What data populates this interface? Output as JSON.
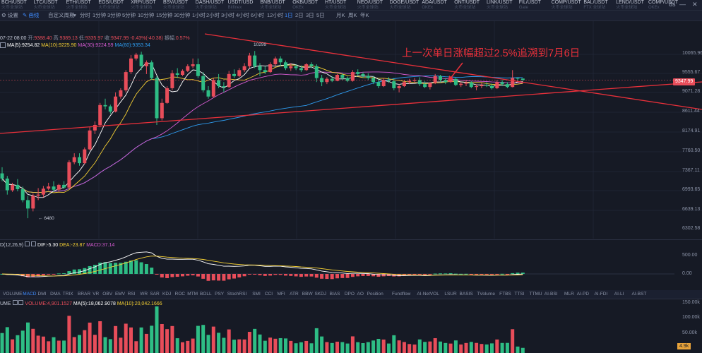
{
  "ticker": [
    {
      "name": "BCH/USDT",
      "sub": "火币全球站"
    },
    {
      "name": "LTC/USDT",
      "sub": "火币全球站"
    },
    {
      "name": "ETH/USDT",
      "sub": "火币全球站"
    },
    {
      "name": "EOS/USDT",
      "sub": "火币全球站"
    },
    {
      "name": "XRP/USDT",
      "sub": "火币全球站"
    },
    {
      "name": "BSV/USDT",
      "sub": "火币全球站"
    },
    {
      "name": "DASH/USDT",
      "sub": "火币全球站"
    },
    {
      "name": "USDT/USD",
      "sub": "Bitfinex"
    },
    {
      "name": "BNB/USDT",
      "sub": "火币全球站"
    },
    {
      "name": "OKB/USDT",
      "sub": "OKEx"
    },
    {
      "name": "HT/USDT",
      "sub": "火币全球站"
    },
    {
      "name": "NEO/USDT",
      "sub": "火币全球站"
    },
    {
      "name": "DOGE/USDT",
      "sub": "火币全球站"
    },
    {
      "name": "ADA/USDT",
      "sub": "OKEx"
    },
    {
      "name": "ONT/USDT",
      "sub": "火币全球站"
    },
    {
      "name": "LINK/USDT",
      "sub": "火币全球站"
    },
    {
      "name": "FIL/USDT",
      "sub": "Gate"
    },
    {
      "name": "COMP/USDT",
      "sub": "火币全球站"
    },
    {
      "name": "BAL/USDT",
      "sub": "FTX 全球站"
    },
    {
      "name": "LEND/USDT",
      "sub": "火币全球站"
    },
    {
      "name": "COMP/USDT",
      "sub": "OKEx"
    }
  ],
  "window": {
    "left_label": "8s",
    "minimize": "—",
    "close": "✕"
  },
  "toolbar": {
    "settings": "设置",
    "draw": "画线",
    "custom_period": "自定义周期",
    "periods": [
      "分时",
      "1分钟",
      "3分钟",
      "5分钟",
      "10分钟",
      "15分钟",
      "30分钟",
      "1小时",
      "2小时",
      "3小时",
      "4小时",
      "6小时",
      "12小时",
      "1日",
      "2日",
      "3日",
      "5日",
      "月K",
      "周K",
      "年K"
    ],
    "active_period": "1日"
  },
  "main_info": {
    "date": "07-22 08:00",
    "open_label": "开:",
    "open": "9388.40",
    "high_label": "高:",
    "high": "9389.13",
    "low_label": "低:",
    "low": "9335.97",
    "close_label": "收:",
    "close": "9347.99",
    "change": "-0.43%(-40.38)",
    "amp_label": "振幅:",
    "amp": "0.57%"
  },
  "ma_info": {
    "ma5": "MA(5):9254.82",
    "ma10": "MA(10):9225.90",
    "ma30": "MA(30):9224.59",
    "ma60": "MA(60):9353.34"
  },
  "annotation": "上一次单日涨幅超过2.5%追溯到7月6日",
  "marks": {
    "high": "10299",
    "low": "6480"
  },
  "price_axis": [
    "10065.96",
    "9555.67",
    "9071.28",
    "8611.44",
    "8174.91",
    "7760.50",
    "7367.11",
    "6993.65",
    "6639.13",
    "6302.58"
  ],
  "current_price": "9347.99",
  "macd_info": {
    "label": "D(12,26,9)",
    "dif": "DIF:-5.30",
    "dea": "DEA:-23.87",
    "macd": "MACD:37.14"
  },
  "macd_axis": [
    "500.00",
    "0.00",
    "-500.00"
  ],
  "indicator_tabs": [
    "VOLUME",
    "MACD",
    "DMI",
    "DMA",
    "TRIX",
    "BRAR",
    "VR",
    "OBV",
    "EMV",
    "RSI",
    "WR",
    "SAR",
    "KDJ",
    "ROC",
    "MTM",
    "BOLL",
    "PSY",
    "StochRSI",
    "SMI",
    "CCI",
    "MFI",
    "ATR",
    "BBW",
    "SKDJ",
    "BIAS",
    "DPO",
    "AO",
    "Position",
    "Fundflow",
    "AI-NetVOL",
    "LSUR",
    "BASIS",
    "TVolume",
    "FTBS",
    "TTSI",
    "TTMU",
    "AI-BSI",
    "MLR",
    "AI-PD",
    "AI-FDI",
    "AI-LI",
    "AI-BST"
  ],
  "active_indicator": "MACD",
  "vol_info": {
    "label": "UME",
    "volume": "VOLUME:4,901.1527",
    "ma5": "MA(5):18,062.9078",
    "ma10": "MA(10):20,042.1666"
  },
  "vol_axis": [
    "150.00k",
    "100.00k",
    "50.00k"
  ],
  "vol_tag": "4.9k",
  "colors": {
    "bg": "#161a25",
    "up": "#e84d5a",
    "down": "#2ebd85",
    "ma5": "#ffffff",
    "ma10": "#f5d033",
    "ma30": "#d65bd2",
    "ma60": "#2e9cf0",
    "trendline": "#e8303a",
    "accent": "#3f8cff"
  },
  "chart_data": {
    "type": "candlestick",
    "ohlc": [
      [
        7300,
        7420,
        7150,
        7200
      ],
      [
        7200,
        7250,
        6900,
        6980
      ],
      [
        6980,
        7120,
        6950,
        7080
      ],
      [
        7080,
        7190,
        6960,
        7000
      ],
      [
        7000,
        7050,
        6760,
        6800
      ],
      [
        6800,
        6880,
        6480,
        6650
      ],
      [
        6650,
        6920,
        6600,
        6880
      ],
      [
        6880,
        7020,
        6800,
        6900
      ],
      [
        6900,
        7060,
        6850,
        7010
      ],
      [
        7010,
        7120,
        6980,
        7050
      ],
      [
        7050,
        7150,
        6950,
        6990
      ],
      [
        6990,
        7100,
        6950,
        7080
      ],
      [
        7080,
        7150,
        7000,
        7030
      ],
      [
        7030,
        7560,
        7000,
        7520
      ],
      [
        7520,
        7700,
        7480,
        7620
      ],
      [
        7620,
        7700,
        7450,
        7500
      ],
      [
        7500,
        7820,
        7480,
        7780
      ],
      [
        7780,
        8250,
        7760,
        8180
      ],
      [
        8180,
        8380,
        8100,
        8300
      ],
      [
        8300,
        8800,
        8250,
        8750
      ],
      [
        8750,
        8900,
        8650,
        8720
      ],
      [
        8720,
        8760,
        8550,
        8600
      ],
      [
        8600,
        9050,
        8580,
        8950
      ],
      [
        8950,
        9150,
        8900,
        9100
      ],
      [
        9100,
        9600,
        9050,
        9550
      ],
      [
        9550,
        9990,
        9500,
        9900
      ],
      [
        9900,
        10050,
        9850,
        10000
      ],
      [
        10000,
        10080,
        9600,
        9700
      ],
      [
        9700,
        9850,
        9500,
        9800
      ],
      [
        9800,
        9850,
        9350,
        9400
      ],
      [
        9400,
        9450,
        8300,
        8450
      ],
      [
        8450,
        8900,
        8400,
        8800
      ],
      [
        8800,
        9200,
        8780,
        9150
      ],
      [
        9150,
        9600,
        9100,
        9520
      ],
      [
        9520,
        9650,
        9400,
        9480
      ],
      [
        9480,
        9620,
        9450,
        9580
      ],
      [
        9580,
        9750,
        9550,
        9700
      ],
      [
        9700,
        9900,
        9650,
        9750
      ],
      [
        9750,
        9900,
        9400,
        9450
      ],
      [
        9450,
        9550,
        9050,
        9100
      ],
      [
        9100,
        9200,
        8900,
        8950
      ],
      [
        8950,
        9400,
        8920,
        9350
      ],
      [
        9350,
        9500,
        9150,
        9200
      ],
      [
        9200,
        9300,
        9050,
        9180
      ],
      [
        9180,
        9580,
        9150,
        9500
      ],
      [
        9500,
        9620,
        9400,
        9450
      ],
      [
        9450,
        9650,
        9420,
        9600
      ],
      [
        9600,
        9780,
        9550,
        9700
      ],
      [
        9700,
        10050,
        9650,
        9980
      ],
      [
        9980,
        10100,
        9650,
        9700
      ],
      [
        9700,
        9780,
        9450,
        9600
      ],
      [
        9600,
        9700,
        9500,
        9550
      ],
      [
        9550,
        9800,
        9530,
        9750
      ],
      [
        9750,
        9950,
        9700,
        9900
      ],
      [
        9900,
        9960,
        9700,
        9800
      ],
      [
        9800,
        9850,
        9600,
        9650
      ],
      [
        9650,
        9780,
        9580,
        9700
      ],
      [
        9700,
        9750,
        9600,
        9650
      ],
      [
        9650,
        9720,
        9550,
        9600
      ],
      [
        9600,
        9780,
        9580,
        9750
      ],
      [
        9750,
        9800,
        9650,
        9700
      ],
      [
        9700,
        9750,
        9300,
        9400
      ],
      [
        9400,
        9480,
        9200,
        9300
      ],
      [
        9300,
        9420,
        9250,
        9380
      ],
      [
        9380,
        9450,
        9300,
        9330
      ],
      [
        9330,
        9500,
        9320,
        9480
      ],
      [
        9480,
        9520,
        9350,
        9400
      ],
      [
        9400,
        9440,
        9300,
        9330
      ],
      [
        9330,
        9600,
        9310,
        9550
      ],
      [
        9550,
        9620,
        9450,
        9500
      ],
      [
        9500,
        9550,
        9400,
        9450
      ],
      [
        9450,
        9520,
        9350,
        9400
      ],
      [
        9400,
        9450,
        9250,
        9300
      ],
      [
        9300,
        9380,
        9150,
        9200
      ],
      [
        9200,
        9400,
        9180,
        9350
      ],
      [
        9350,
        9420,
        9280,
        9320
      ],
      [
        9320,
        9400,
        9100,
        9150
      ],
      [
        9150,
        9250,
        9050,
        9200
      ],
      [
        9200,
        9350,
        9180,
        9300
      ],
      [
        9300,
        9380,
        9250,
        9330
      ],
      [
        9330,
        9400,
        9280,
        9350
      ],
      [
        9350,
        9420,
        9200,
        9250
      ],
      [
        9250,
        9320,
        9150,
        9180
      ],
      [
        9180,
        9300,
        9120,
        9280
      ],
      [
        9280,
        9500,
        9250,
        9450
      ],
      [
        9450,
        9480,
        9300,
        9350
      ],
      [
        9350,
        9400,
        9250,
        9300
      ],
      [
        9300,
        9420,
        9280,
        9380
      ],
      [
        9380,
        9400,
        9200,
        9230
      ],
      [
        9230,
        9300,
        9180,
        9260
      ],
      [
        9260,
        9350,
        9200,
        9290
      ],
      [
        9290,
        9320,
        9150,
        9180
      ],
      [
        9180,
        9250,
        9100,
        9200
      ],
      [
        9200,
        9280,
        9150,
        9230
      ],
      [
        9230,
        9300,
        9180,
        9210
      ],
      [
        9210,
        9260,
        9120,
        9150
      ],
      [
        9150,
        9350,
        9130,
        9300
      ],
      [
        9300,
        9350,
        9200,
        9250
      ],
      [
        9250,
        9300,
        9150,
        9180
      ],
      [
        9180,
        9600,
        9170,
        9400
      ],
      [
        9400,
        9410,
        9330,
        9390
      ],
      [
        9388,
        9389,
        9336,
        9348
      ]
    ]
  }
}
